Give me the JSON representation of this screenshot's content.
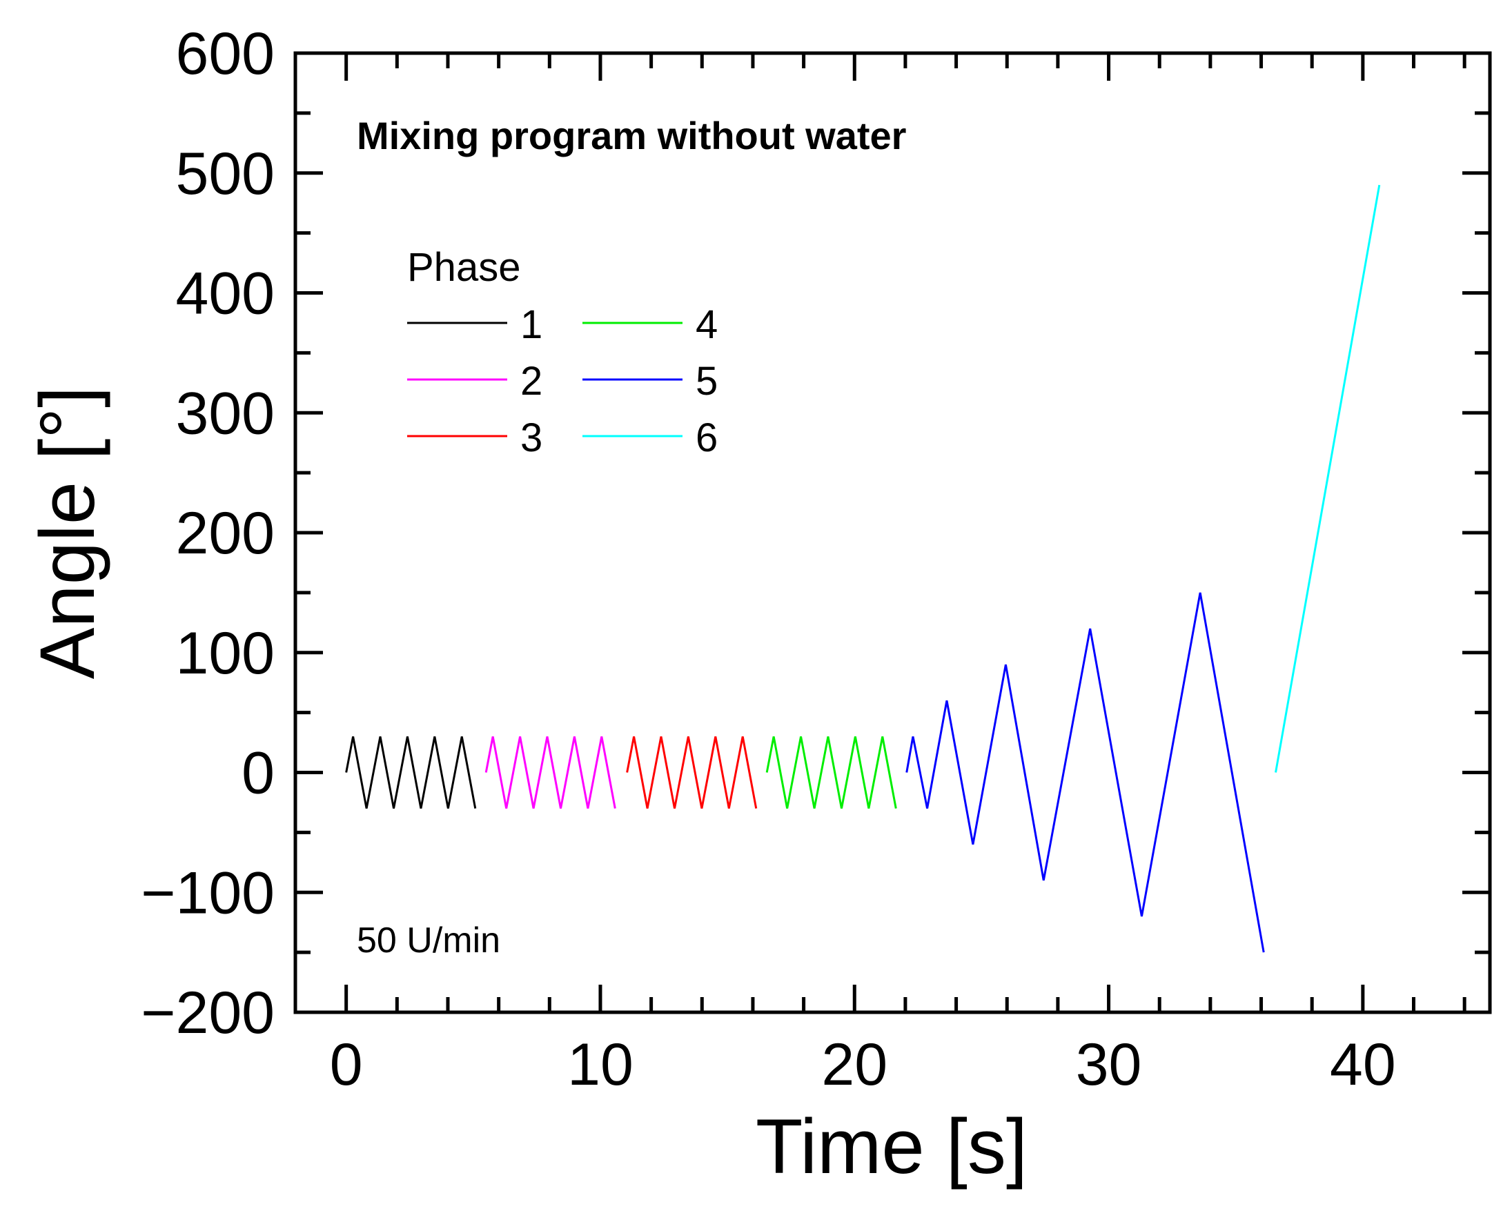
{
  "chart_data": {
    "type": "line",
    "title": "Mixing program without water",
    "annotation": "50 U/min",
    "xlabel": "Time [s]",
    "ylabel": "Angle [°]",
    "xlim": [
      -2,
      45
    ],
    "ylim": [
      -200,
      600
    ],
    "xticks": [
      0,
      10,
      20,
      30,
      40
    ],
    "xtick_labels": [
      "0",
      "10",
      "20",
      "30",
      "40"
    ],
    "yticks": [
      -200,
      -100,
      0,
      100,
      200,
      300,
      400,
      500,
      600
    ],
    "ytick_labels": [
      "−200",
      "−100",
      "0",
      "100",
      "200",
      "300",
      "400",
      "500",
      "600"
    ],
    "x_minor_step": 2,
    "y_minor_step": 50,
    "grid": false,
    "legend_title": "Phase",
    "legend_placement": "upper-left",
    "series": [
      {
        "name": "1",
        "color": "#000000",
        "points": [
          [
            0,
            0
          ],
          [
            0.27,
            30
          ],
          [
            0.8,
            -30
          ],
          [
            1.34,
            30
          ],
          [
            1.87,
            -30
          ],
          [
            2.41,
            30
          ],
          [
            2.94,
            -30
          ],
          [
            3.48,
            30
          ],
          [
            4.01,
            -30
          ],
          [
            4.55,
            30
          ],
          [
            5.08,
            -30
          ]
        ]
      },
      {
        "name": "2",
        "color": "#ff00ff",
        "points": [
          [
            5.5,
            0
          ],
          [
            5.77,
            30
          ],
          [
            6.3,
            -30
          ],
          [
            6.84,
            30
          ],
          [
            7.37,
            -30
          ],
          [
            7.91,
            30
          ],
          [
            8.44,
            -30
          ],
          [
            8.98,
            30
          ],
          [
            9.51,
            -30
          ],
          [
            10.05,
            30
          ],
          [
            10.58,
            -30
          ]
        ]
      },
      {
        "name": "3",
        "color": "#ff0000",
        "points": [
          [
            11.05,
            0
          ],
          [
            11.32,
            30
          ],
          [
            11.85,
            -30
          ],
          [
            12.39,
            30
          ],
          [
            12.92,
            -30
          ],
          [
            13.46,
            30
          ],
          [
            13.99,
            -30
          ],
          [
            14.53,
            30
          ],
          [
            15.06,
            -30
          ],
          [
            15.6,
            30
          ],
          [
            16.13,
            -30
          ]
        ]
      },
      {
        "name": "4",
        "color": "#00ee00",
        "points": [
          [
            16.55,
            0
          ],
          [
            16.82,
            30
          ],
          [
            17.35,
            -30
          ],
          [
            17.89,
            30
          ],
          [
            18.42,
            -30
          ],
          [
            18.96,
            30
          ],
          [
            19.49,
            -30
          ],
          [
            20.03,
            30
          ],
          [
            20.56,
            -30
          ],
          [
            21.1,
            30
          ],
          [
            21.63,
            -30
          ]
        ]
      },
      {
        "name": "5",
        "color": "#0000ff",
        "points": [
          [
            22.05,
            0
          ],
          [
            22.3,
            30
          ],
          [
            22.86,
            -30
          ],
          [
            23.63,
            60
          ],
          [
            24.66,
            -60
          ],
          [
            25.95,
            90
          ],
          [
            27.44,
            -90
          ],
          [
            29.27,
            120
          ],
          [
            31.3,
            -120
          ],
          [
            33.6,
            150
          ],
          [
            36.1,
            -150
          ]
        ]
      },
      {
        "name": "6",
        "color": "#00ffff",
        "points": [
          [
            36.57,
            0
          ],
          [
            40.65,
            490
          ]
        ]
      }
    ]
  }
}
